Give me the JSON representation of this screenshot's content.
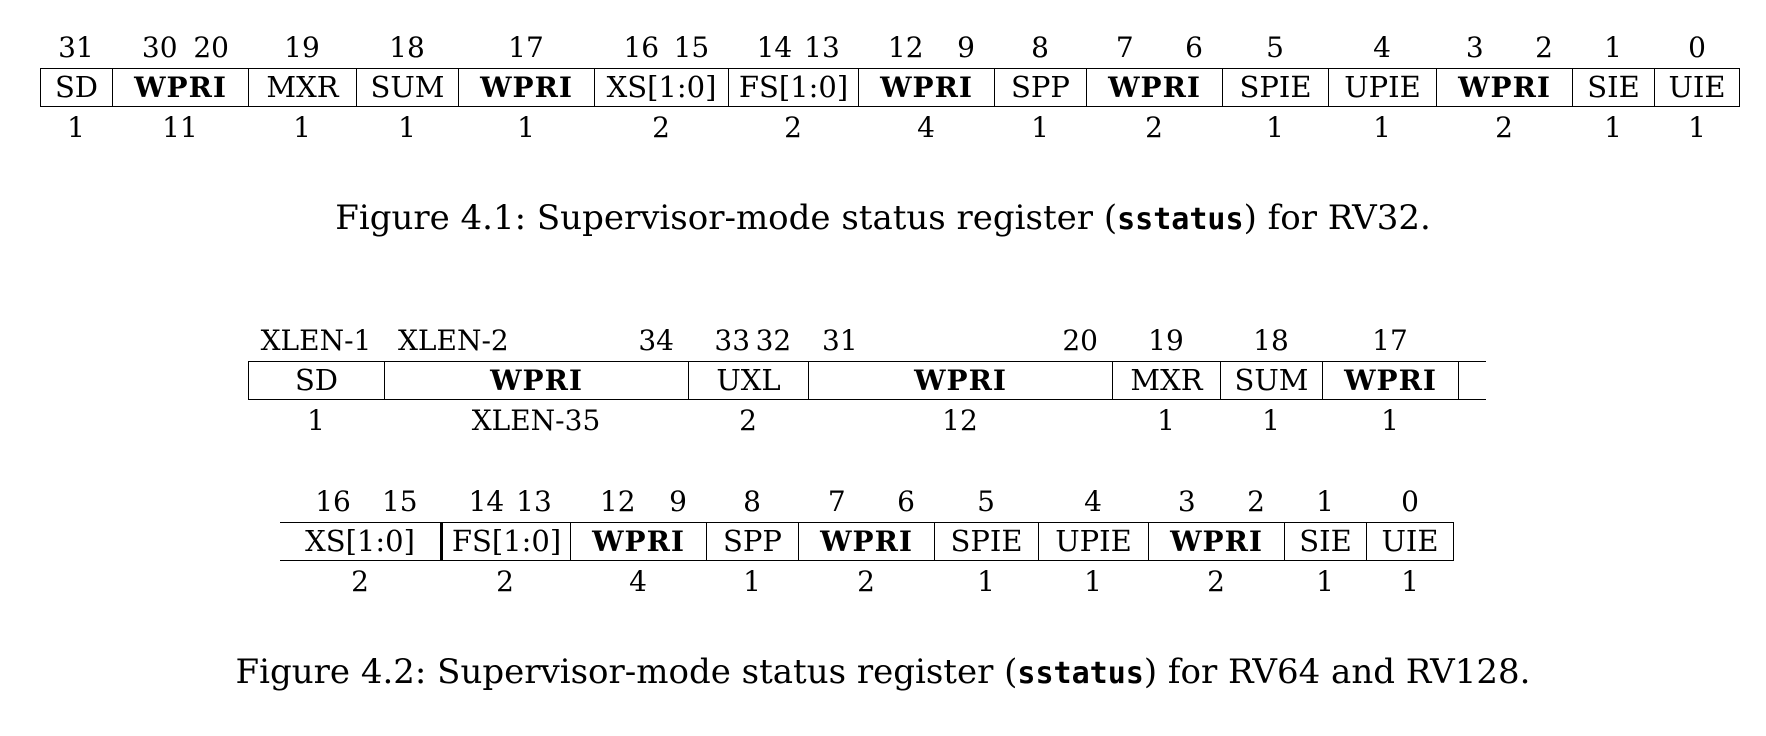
{
  "figure1": {
    "fields": [
      {
        "name": "SD",
        "bits_hi": "31",
        "bits_lo": "",
        "width": "1",
        "bold": false
      },
      {
        "name": "WPRI",
        "bits_hi": "30",
        "bits_lo": "20",
        "width": "11",
        "bold": true
      },
      {
        "name": "MXR",
        "bits_hi": "19",
        "bits_lo": "",
        "width": "1",
        "bold": false
      },
      {
        "name": "SUM",
        "bits_hi": "18",
        "bits_lo": "",
        "width": "1",
        "bold": false
      },
      {
        "name": "WPRI",
        "bits_hi": "17",
        "bits_lo": "",
        "width": "1",
        "bold": true
      },
      {
        "name": "XS[1:0]",
        "bits_hi": "16",
        "bits_lo": "15",
        "width": "2",
        "bold": false
      },
      {
        "name": "FS[1:0]",
        "bits_hi": "14",
        "bits_lo": "13",
        "width": "2",
        "bold": false
      },
      {
        "name": "WPRI",
        "bits_hi": "12",
        "bits_lo": "9",
        "width": "4",
        "bold": true
      },
      {
        "name": "SPP",
        "bits_hi": "8",
        "bits_lo": "",
        "width": "1",
        "bold": false
      },
      {
        "name": "WPRI",
        "bits_hi": "7",
        "bits_lo": "6",
        "width": "2",
        "bold": true
      },
      {
        "name": "SPIE",
        "bits_hi": "5",
        "bits_lo": "",
        "width": "1",
        "bold": false
      },
      {
        "name": "UPIE",
        "bits_hi": "4",
        "bits_lo": "",
        "width": "1",
        "bold": false
      },
      {
        "name": "WPRI",
        "bits_hi": "3",
        "bits_lo": "2",
        "width": "2",
        "bold": true
      },
      {
        "name": "SIE",
        "bits_hi": "1",
        "bits_lo": "",
        "width": "1",
        "bold": false
      },
      {
        "name": "UIE",
        "bits_hi": "0",
        "bits_lo": "",
        "width": "1",
        "bold": false
      }
    ],
    "caption_pre": "Figure 4.1: Supervisor-mode status register (",
    "caption_code": "sstatus",
    "caption_post": ") for RV32."
  },
  "figure2": {
    "row1": [
      {
        "name": "SD",
        "bits_hi": "XLEN-1",
        "bits_lo": "",
        "width": "1",
        "bold": false
      },
      {
        "name": "WPRI",
        "bits_hi": "XLEN-2",
        "bits_lo": "34",
        "width": "XLEN-35",
        "bold": true
      },
      {
        "name": "UXL",
        "bits_hi": "33",
        "bits_lo": "32",
        "width": "2",
        "bold": false
      },
      {
        "name": "WPRI",
        "bits_hi": "31",
        "bits_lo": "20",
        "width": "12",
        "bold": true
      },
      {
        "name": "MXR",
        "bits_hi": "19",
        "bits_lo": "",
        "width": "1",
        "bold": false
      },
      {
        "name": "SUM",
        "bits_hi": "18",
        "bits_lo": "",
        "width": "1",
        "bold": false
      },
      {
        "name": "WPRI",
        "bits_hi": "17",
        "bits_lo": "",
        "width": "1",
        "bold": true
      }
    ],
    "row2": [
      {
        "name": "XS[1:0]",
        "bits_hi": "16",
        "bits_lo": "15",
        "width": "2",
        "bold": false
      },
      {
        "name": "FS[1:0]",
        "bits_hi": "14",
        "bits_lo": "13",
        "width": "2",
        "bold": false
      },
      {
        "name": "WPRI",
        "bits_hi": "12",
        "bits_lo": "9",
        "width": "4",
        "bold": true
      },
      {
        "name": "SPP",
        "bits_hi": "8",
        "bits_lo": "",
        "width": "1",
        "bold": false
      },
      {
        "name": "WPRI",
        "bits_hi": "7",
        "bits_lo": "6",
        "width": "2",
        "bold": true
      },
      {
        "name": "SPIE",
        "bits_hi": "5",
        "bits_lo": "",
        "width": "1",
        "bold": false
      },
      {
        "name": "UPIE",
        "bits_hi": "4",
        "bits_lo": "",
        "width": "1",
        "bold": false
      },
      {
        "name": "WPRI",
        "bits_hi": "3",
        "bits_lo": "2",
        "width": "2",
        "bold": true
      },
      {
        "name": "SIE",
        "bits_hi": "1",
        "bits_lo": "",
        "width": "1",
        "bold": false
      },
      {
        "name": "UIE",
        "bits_hi": "0",
        "bits_lo": "",
        "width": "1",
        "bold": false
      }
    ],
    "caption_pre": "Figure 4.2: Supervisor-mode status register (",
    "caption_code": "sstatus",
    "caption_post": ") for RV64 and RV128."
  }
}
